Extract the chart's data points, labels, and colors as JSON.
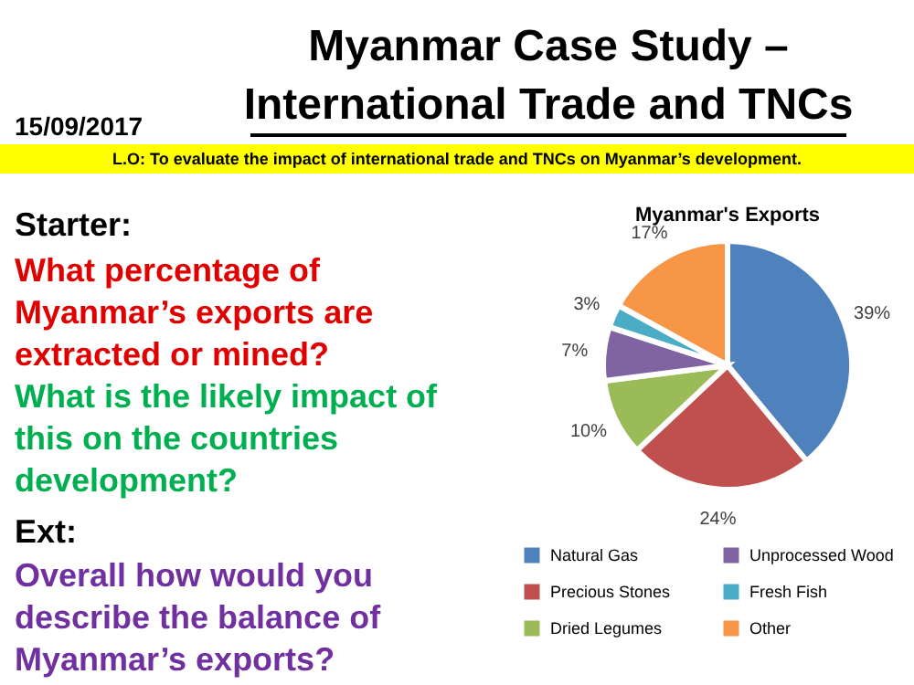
{
  "chart_data": {
    "type": "pie",
    "title": "Myanmar's Exports",
    "categories": [
      "Natural Gas",
      "Precious Stones",
      "Dried Legumes",
      "Unprocessed Wood",
      "Fresh Fish",
      "Other"
    ],
    "values": [
      39,
      24,
      10,
      7,
      3,
      17
    ],
    "value_labels": [
      "39%",
      "24%",
      "10%",
      "7%",
      "3%",
      "17%"
    ],
    "colors": [
      "#4f81bd",
      "#c0504d",
      "#9bbb59",
      "#8064a2",
      "#4bacc6",
      "#f79646"
    ],
    "legend": "bottom",
    "annotations": [
      "Myanmar Case Study –",
      "International Trade and TNCs",
      "15/09/2017",
      "L.O: To evaluate the impact of international trade and TNCs on Myanmar’s development.",
      "Starter:",
      "What percentage of",
      "Myanmar’s exports are",
      "extracted or mined?",
      "What is the likely impact of",
      "this on the countries",
      "development?",
      "Ext:",
      "Overall how would you",
      "describe the balance of",
      "Myanmar’s exports?"
    ]
  }
}
